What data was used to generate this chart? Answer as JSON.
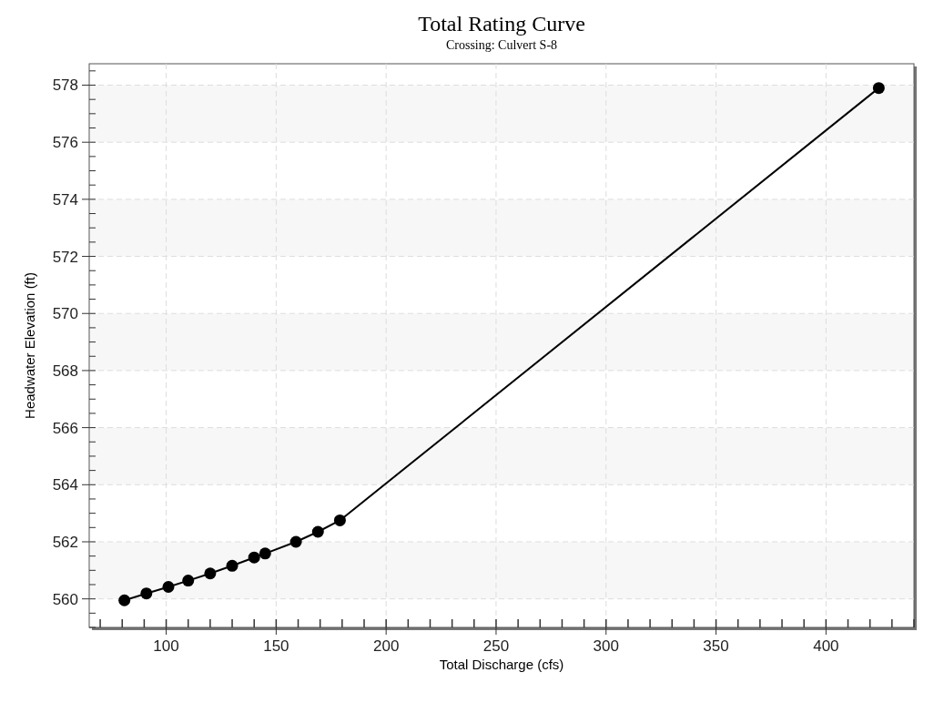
{
  "chart_data": {
    "type": "line",
    "title": "Total Rating Curve",
    "subtitle": "Crossing: Culvert S-8",
    "xlabel": "Total Discharge (cfs)",
    "ylabel": "Headwater Elevation (ft)",
    "x": [
      81,
      91,
      101,
      110,
      120,
      130,
      140,
      145,
      159,
      169,
      179,
      424
    ],
    "series": [
      {
        "color": "#000000",
        "values": [
          559.95,
          560.19,
          560.42,
          560.64,
          560.89,
          561.16,
          561.45,
          561.59,
          562.0,
          562.35,
          562.75,
          577.9
        ]
      }
    ],
    "xlim": [
      65,
      440
    ],
    "xticks": [
      100,
      150,
      200,
      250,
      300,
      350,
      400
    ],
    "ylim": [
      559,
      578.75
    ],
    "yticks": [
      560,
      562,
      564,
      566,
      568,
      570,
      572,
      574,
      576,
      578
    ],
    "grid": true,
    "marker": "circle",
    "line_style": "solid"
  }
}
